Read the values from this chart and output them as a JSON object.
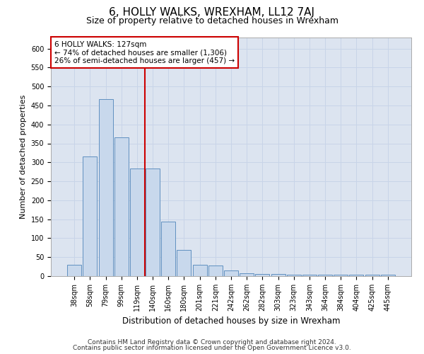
{
  "title": "6, HOLLY WALKS, WREXHAM, LL12 7AJ",
  "subtitle": "Size of property relative to detached houses in Wrexham",
  "xlabel": "Distribution of detached houses by size in Wrexham",
  "ylabel": "Number of detached properties",
  "categories": [
    "38sqm",
    "58sqm",
    "79sqm",
    "99sqm",
    "119sqm",
    "140sqm",
    "160sqm",
    "180sqm",
    "201sqm",
    "221sqm",
    "242sqm",
    "262sqm",
    "282sqm",
    "303sqm",
    "323sqm",
    "343sqm",
    "364sqm",
    "384sqm",
    "404sqm",
    "425sqm",
    "445sqm"
  ],
  "values": [
    30,
    315,
    467,
    365,
    283,
    283,
    144,
    70,
    30,
    28,
    15,
    8,
    5,
    5,
    4,
    4,
    4,
    4,
    4,
    4,
    4
  ],
  "bar_color": "#c8d8ec",
  "bar_edge_color": "#6090c0",
  "vline_color": "#cc0000",
  "vline_pos": 4.5,
  "annotation_text": "6 HOLLY WALKS: 127sqm\n← 74% of detached houses are smaller (1,306)\n26% of semi-detached houses are larger (457) →",
  "annotation_box_color": "#ffffff",
  "annotation_box_edge": "#cc0000",
  "ylim": [
    0,
    630
  ],
  "yticks": [
    0,
    50,
    100,
    150,
    200,
    250,
    300,
    350,
    400,
    450,
    500,
    550,
    600
  ],
  "grid_color": "#c8d4e8",
  "background_color": "#dce4f0",
  "footer_line1": "Contains HM Land Registry data © Crown copyright and database right 2024.",
  "footer_line2": "Contains public sector information licensed under the Open Government Licence v3.0.",
  "title_fontsize": 11,
  "subtitle_fontsize": 9,
  "footer_fontsize": 6.5,
  "annotation_fontsize": 7.5,
  "ylabel_fontsize": 8,
  "xlabel_fontsize": 8.5,
  "tick_fontsize": 7
}
